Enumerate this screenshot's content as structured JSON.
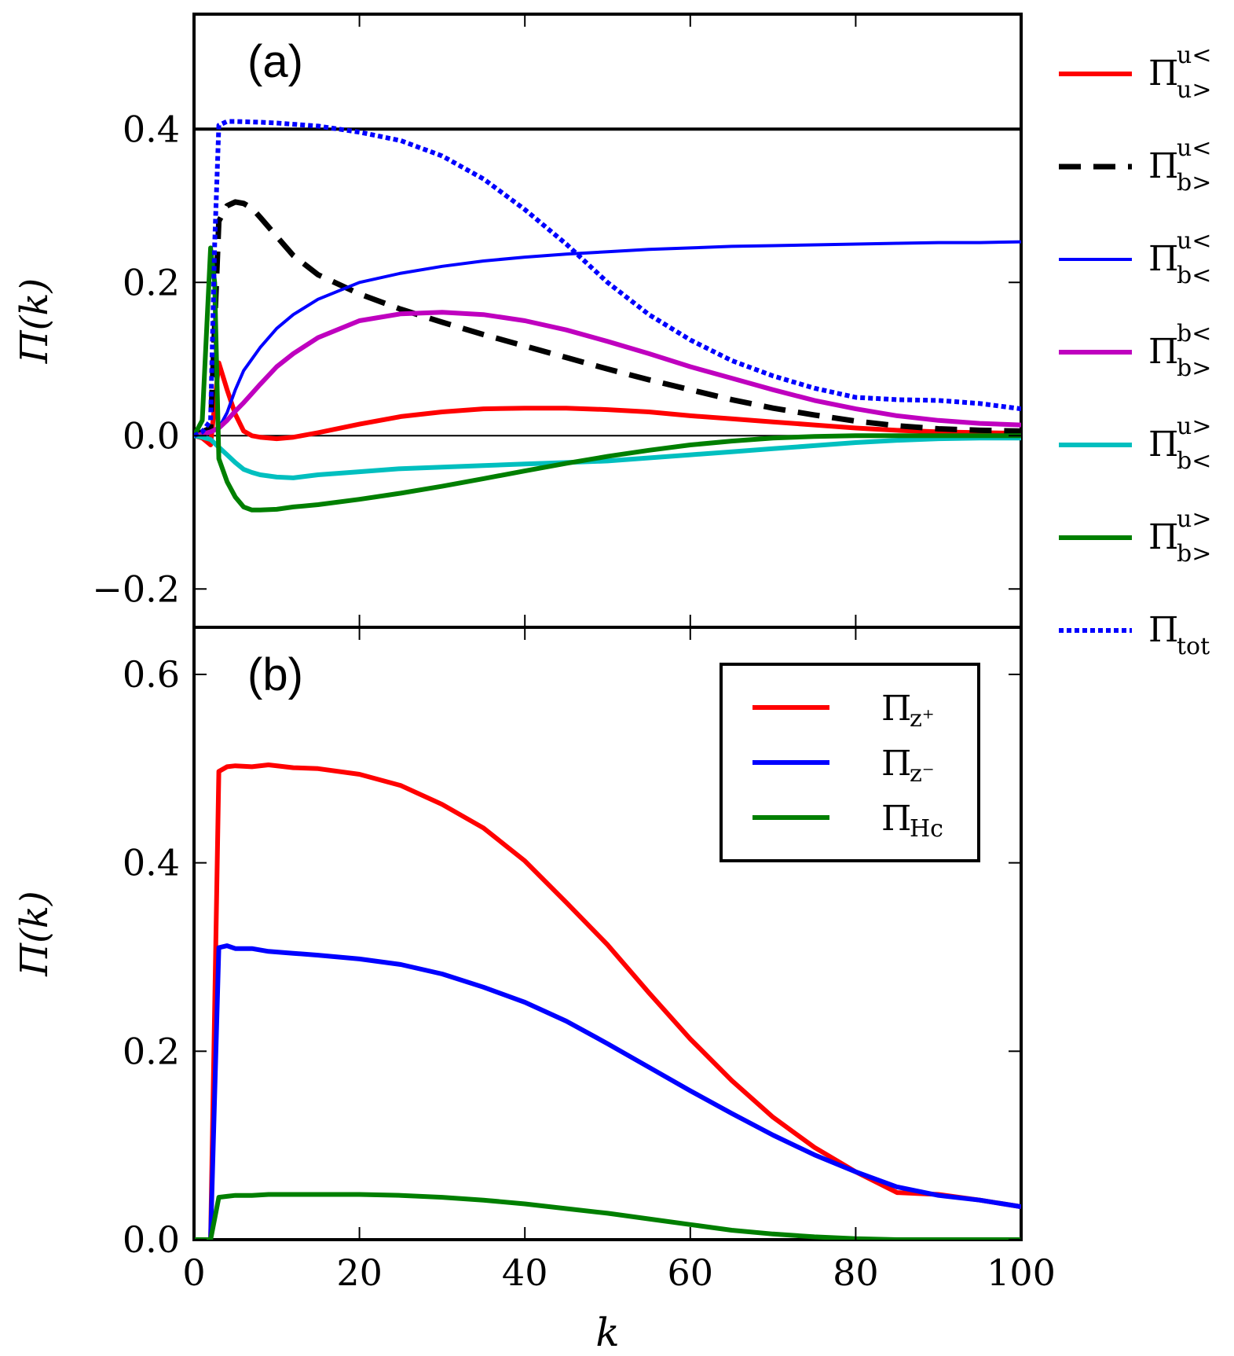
{
  "chart_data": [
    {
      "type": "line",
      "panel": "(a)",
      "panel_label": "(a)",
      "xlabel": "",
      "ylabel": "Π(k)",
      "xlim": [
        0,
        100
      ],
      "ylim": [
        -0.25,
        0.55
      ],
      "yticks": [
        -0.2,
        0.0,
        0.2,
        0.4
      ],
      "ytick_labels": [
        "−0.2",
        "0.0",
        "0.2",
        "0.4"
      ],
      "xticks": [
        0,
        20,
        40,
        60,
        80,
        100
      ],
      "hlines": [
        0.0,
        0.4
      ],
      "legend_position": "outside-right",
      "series": [
        {
          "name": "Π^{u<}_{u>}",
          "legend_main": "Π",
          "legend_sup": "u<",
          "legend_sub": "u>",
          "color": "#ff0000",
          "style": "solid",
          "width": 6,
          "x": [
            0,
            1,
            2,
            3,
            4,
            5,
            6,
            7,
            8,
            10,
            12,
            15,
            20,
            25,
            30,
            35,
            40,
            45,
            50,
            55,
            60,
            65,
            70,
            75,
            80,
            85,
            90,
            95,
            100
          ],
          "y": [
            0,
            -0.003,
            -0.012,
            0.095,
            0.06,
            0.028,
            0.006,
            0.0,
            -0.002,
            -0.004,
            -0.002,
            0.004,
            0.015,
            0.025,
            0.031,
            0.035,
            0.036,
            0.036,
            0.034,
            0.031,
            0.026,
            0.022,
            0.018,
            0.014,
            0.01,
            0.007,
            0.005,
            0.004,
            0.003
          ]
        },
        {
          "name": "Π^{u<}_{b>}",
          "legend_main": "Π",
          "legend_sup": "u<",
          "legend_sub": "b>",
          "color": "#000000",
          "style": "dashed",
          "width": 7,
          "x": [
            0,
            1,
            2,
            3,
            4,
            5,
            6,
            7,
            8,
            10,
            12,
            15,
            20,
            25,
            30,
            35,
            40,
            45,
            50,
            55,
            60,
            65,
            70,
            75,
            80,
            85,
            90,
            95,
            100
          ],
          "y": [
            0,
            0.005,
            0.01,
            0.28,
            0.3,
            0.305,
            0.303,
            0.297,
            0.285,
            0.26,
            0.235,
            0.21,
            0.185,
            0.165,
            0.148,
            0.132,
            0.117,
            0.102,
            0.087,
            0.073,
            0.06,
            0.047,
            0.036,
            0.027,
            0.019,
            0.013,
            0.009,
            0.007,
            0.006
          ]
        },
        {
          "name": "Π^{u<}_{b<}",
          "legend_main": "Π",
          "legend_sup": "u<",
          "legend_sub": "b<",
          "color": "#0000ff",
          "style": "solid",
          "width": 4,
          "x": [
            0,
            1,
            2,
            3,
            4,
            5,
            6,
            7,
            8,
            10,
            12,
            15,
            20,
            25,
            30,
            35,
            40,
            45,
            50,
            55,
            60,
            65,
            70,
            75,
            80,
            85,
            90,
            95,
            100
          ],
          "y": [
            0,
            0.002,
            0.005,
            0.01,
            0.03,
            0.06,
            0.085,
            0.1,
            0.115,
            0.14,
            0.158,
            0.178,
            0.2,
            0.212,
            0.221,
            0.228,
            0.233,
            0.237,
            0.24,
            0.243,
            0.245,
            0.247,
            0.248,
            0.249,
            0.25,
            0.251,
            0.252,
            0.252,
            0.253
          ]
        },
        {
          "name": "Π^{b<}_{b>}",
          "legend_main": "Π",
          "legend_sup": "b<",
          "legend_sub": "b>",
          "color": "#bf00bf",
          "style": "solid",
          "width": 6,
          "x": [
            0,
            1,
            2,
            3,
            4,
            5,
            6,
            7,
            8,
            10,
            12,
            15,
            20,
            25,
            30,
            35,
            40,
            45,
            50,
            55,
            60,
            65,
            70,
            75,
            80,
            85,
            90,
            95,
            100
          ],
          "y": [
            0,
            0.002,
            0.005,
            0.01,
            0.02,
            0.032,
            0.043,
            0.055,
            0.067,
            0.09,
            0.107,
            0.128,
            0.15,
            0.159,
            0.161,
            0.158,
            0.15,
            0.138,
            0.123,
            0.107,
            0.09,
            0.075,
            0.06,
            0.046,
            0.035,
            0.026,
            0.02,
            0.016,
            0.014
          ]
        },
        {
          "name": "Π^{u>}_{b<}",
          "legend_main": "Π",
          "legend_sup": "u>",
          "legend_sub": "b<",
          "color": "#00bfbf",
          "style": "solid",
          "width": 6,
          "x": [
            0,
            1,
            2,
            3,
            4,
            5,
            6,
            7,
            8,
            10,
            12,
            15,
            20,
            25,
            30,
            35,
            40,
            45,
            50,
            55,
            60,
            65,
            70,
            75,
            80,
            85,
            90,
            95,
            100
          ],
          "y": [
            0,
            -0.002,
            -0.005,
            -0.015,
            -0.025,
            -0.035,
            -0.044,
            -0.048,
            -0.051,
            -0.054,
            -0.055,
            -0.051,
            -0.047,
            -0.043,
            -0.041,
            -0.039,
            -0.037,
            -0.035,
            -0.033,
            -0.029,
            -0.025,
            -0.021,
            -0.017,
            -0.013,
            -0.009,
            -0.006,
            -0.004,
            -0.003,
            -0.003
          ]
        },
        {
          "name": "Π^{u>}_{b>}",
          "legend_main": "Π",
          "legend_sup": "u>",
          "legend_sub": "b>",
          "color": "#007f00",
          "style": "solid",
          "width": 6,
          "x": [
            0,
            1,
            2,
            2.5,
            3,
            4,
            5,
            6,
            7,
            8,
            10,
            12,
            15,
            20,
            25,
            30,
            35,
            40,
            45,
            50,
            55,
            60,
            65,
            70,
            75,
            80,
            85,
            90,
            95,
            100
          ],
          "y": [
            0,
            0.02,
            0.245,
            0.2,
            -0.03,
            -0.06,
            -0.08,
            -0.093,
            -0.097,
            -0.097,
            -0.096,
            -0.093,
            -0.09,
            -0.083,
            -0.075,
            -0.066,
            -0.056,
            -0.046,
            -0.036,
            -0.027,
            -0.019,
            -0.012,
            -0.007,
            -0.003,
            -0.001,
            0.0,
            0.0,
            0.0,
            0.0,
            0.0
          ]
        },
        {
          "name": "Π_tot",
          "legend_main": "Π",
          "legend_sup": "",
          "legend_sub": "tot",
          "color": "#0000ff",
          "style": "dotted",
          "width": 6,
          "x": [
            0,
            1,
            2,
            2.5,
            3,
            4,
            5,
            8,
            10,
            15,
            20,
            25,
            30,
            35,
            40,
            45,
            50,
            55,
            60,
            65,
            70,
            75,
            80,
            85,
            90,
            95,
            100
          ],
          "y": [
            0,
            0.005,
            0.02,
            0.25,
            0.405,
            0.41,
            0.41,
            0.409,
            0.408,
            0.404,
            0.396,
            0.385,
            0.365,
            0.335,
            0.295,
            0.25,
            0.2,
            0.158,
            0.125,
            0.098,
            0.078,
            0.062,
            0.05,
            0.047,
            0.046,
            0.042,
            0.035
          ]
        }
      ]
    },
    {
      "type": "line",
      "panel": "(b)",
      "panel_label": "(b)",
      "xlabel": "k",
      "ylabel": "Π(k)",
      "xlim": [
        0,
        100
      ],
      "ylim": [
        0.0,
        0.65
      ],
      "yticks": [
        0.0,
        0.2,
        0.4,
        0.6
      ],
      "ytick_labels": [
        "0.0",
        "0.2",
        "0.4",
        "0.6"
      ],
      "xticks": [
        0,
        20,
        40,
        60,
        80,
        100
      ],
      "xtick_labels": [
        "0",
        "20",
        "40",
        "60",
        "80",
        "100"
      ],
      "legend_position": "upper-right",
      "series": [
        {
          "name": "Π_{z+}",
          "legend_main": "Π",
          "legend_sup": "",
          "legend_sub": "z⁺",
          "color": "#ff0000",
          "style": "solid",
          "width": 6,
          "x": [
            0,
            1,
            2,
            3,
            4,
            5,
            7,
            9,
            12,
            15,
            20,
            25,
            30,
            35,
            40,
            45,
            50,
            55,
            60,
            65,
            70,
            75,
            80,
            85,
            90,
            95,
            100
          ],
          "y": [
            0,
            0.0,
            0.0,
            0.497,
            0.502,
            0.503,
            0.502,
            0.504,
            0.501,
            0.5,
            0.494,
            0.482,
            0.462,
            0.437,
            0.402,
            0.358,
            0.313,
            0.262,
            0.213,
            0.169,
            0.13,
            0.098,
            0.072,
            0.05,
            0.048,
            0.042,
            0.035
          ]
        },
        {
          "name": "Π_{z−}",
          "legend_main": "Π",
          "legend_sup": "",
          "legend_sub": "z⁻",
          "color": "#0000ff",
          "style": "solid",
          "width": 6,
          "x": [
            0,
            1,
            2,
            3,
            4,
            5,
            7,
            9,
            12,
            15,
            20,
            25,
            30,
            35,
            40,
            45,
            50,
            55,
            60,
            65,
            70,
            75,
            80,
            85,
            90,
            95,
            100
          ],
          "y": [
            0,
            0.0,
            0.0,
            0.31,
            0.312,
            0.309,
            0.309,
            0.306,
            0.304,
            0.302,
            0.298,
            0.292,
            0.282,
            0.268,
            0.252,
            0.232,
            0.208,
            0.183,
            0.158,
            0.134,
            0.111,
            0.09,
            0.072,
            0.056,
            0.047,
            0.042,
            0.035
          ]
        },
        {
          "name": "Π_Hc",
          "legend_main": "Π",
          "legend_sup": "",
          "legend_sub": "Hc",
          "color": "#007f00",
          "style": "solid",
          "width": 6,
          "x": [
            0,
            1,
            2,
            3,
            4,
            5,
            7,
            9,
            12,
            15,
            20,
            25,
            30,
            35,
            40,
            45,
            50,
            55,
            60,
            65,
            70,
            75,
            80,
            85,
            90,
            95,
            100
          ],
          "y": [
            0,
            0.0,
            0.0,
            0.045,
            0.046,
            0.047,
            0.047,
            0.048,
            0.048,
            0.048,
            0.048,
            0.047,
            0.045,
            0.042,
            0.038,
            0.033,
            0.028,
            0.022,
            0.016,
            0.01,
            0.006,
            0.003,
            0.001,
            0.0,
            0.0,
            0.0,
            0.0
          ]
        }
      ]
    }
  ]
}
